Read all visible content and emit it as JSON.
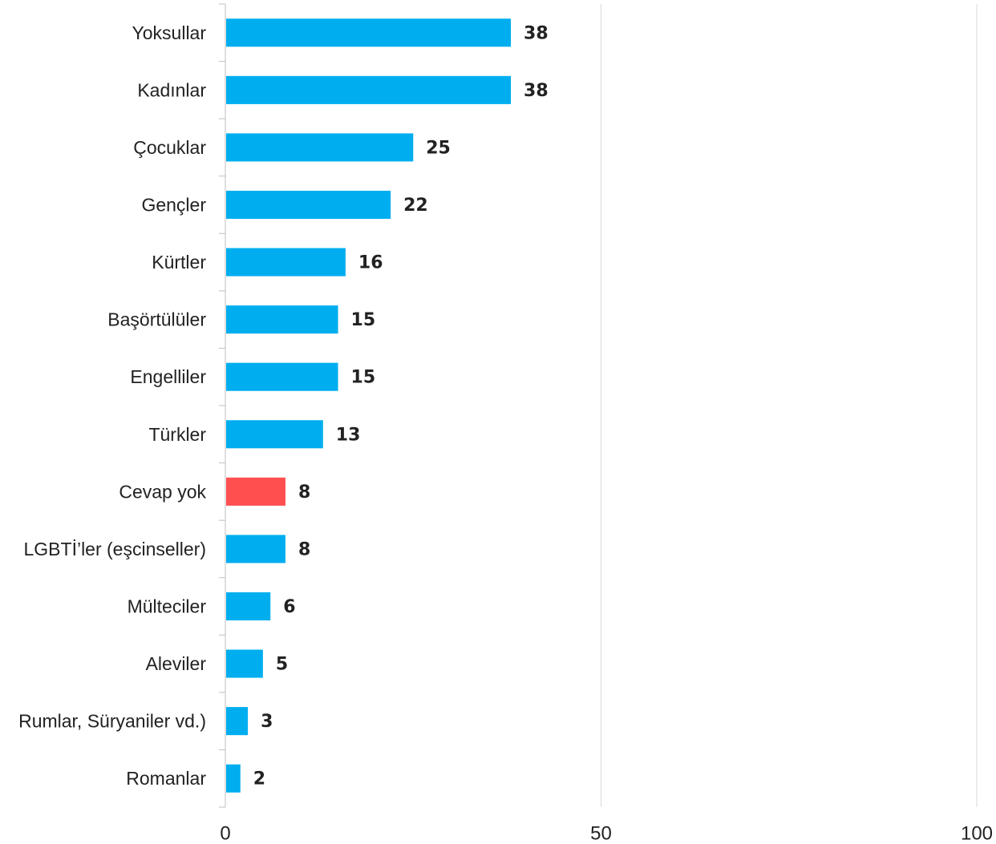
{
  "chart_data": {
    "type": "bar",
    "orientation": "horizontal",
    "categories": [
      "Yoksullar",
      "Kadınlar",
      "Çocuklar",
      "Gençler",
      "Kürtler",
      "Başörtülüler",
      "Engelliler",
      "Türkler",
      "Cevap yok",
      "LGBTİ’ler (eşcinseller)",
      "Mülteciler",
      "Aleviler",
      "Rumlar, Süryaniler vd.)",
      "Romanlar"
    ],
    "values": [
      38,
      38,
      25,
      22,
      16,
      15,
      15,
      13,
      8,
      8,
      6,
      5,
      3,
      2
    ],
    "value_labels": [
      "38",
      "38",
      "25",
      "22",
      "16",
      "15",
      "15",
      "13",
      "8",
      "8",
      "6",
      "5",
      "3",
      "2"
    ],
    "highlight_category": "Cevap yok",
    "xlim": [
      0,
      100
    ],
    "xticks": [
      0,
      50,
      100
    ],
    "xtick_labels": [
      "0",
      "50",
      "100"
    ],
    "grid": "vertical",
    "legend": "none",
    "title": "",
    "xlabel": "",
    "ylabel": "",
    "colors": {
      "bar": "#00AEEF",
      "highlight": "#FF4F4F",
      "grid": "#D9D9D9",
      "axis": "#BFBFBF",
      "text": "#222222"
    }
  }
}
